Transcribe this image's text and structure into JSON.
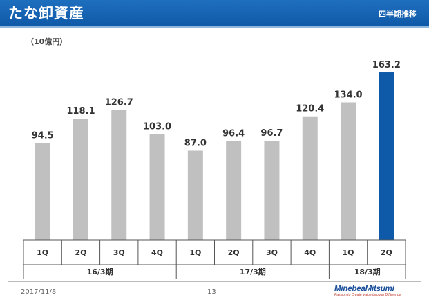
{
  "header": {
    "title": "たな卸資産",
    "subtitle": "四半期推移"
  },
  "unit_label": "（10億円）",
  "chart_data": {
    "type": "bar",
    "categories": [
      "1Q",
      "2Q",
      "3Q",
      "4Q",
      "1Q",
      "2Q",
      "3Q",
      "4Q",
      "1Q",
      "2Q"
    ],
    "values": [
      94.5,
      118.1,
      126.7,
      103.0,
      87.0,
      96.4,
      96.7,
      120.4,
      134.0,
      163.2
    ],
    "value_labels": [
      "94.5",
      "118.1",
      "126.7",
      "103.0",
      "87.0",
      "96.4",
      "96.7",
      "120.4",
      "134.0",
      "163.2"
    ],
    "groups": [
      {
        "label": "16/3期",
        "count": 4
      },
      {
        "label": "17/3期",
        "count": 4
      },
      {
        "label": "18/3期",
        "count": 2
      }
    ],
    "ylim": [
      0,
      180
    ],
    "highlight_index": 9,
    "colors": {
      "bar": "#c0c0c0",
      "highlight": "#0f5aa8"
    },
    "grid": false
  },
  "footer": {
    "date": "2017/11/8",
    "page": "13",
    "logo_name": "MinebeaMitsumi",
    "logo_tagline": "Passion to Create Value through Difference"
  }
}
